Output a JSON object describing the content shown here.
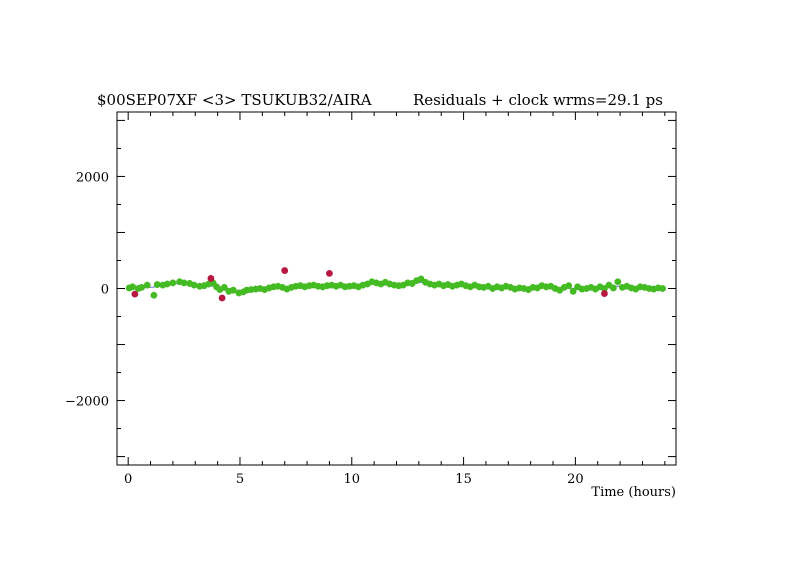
{
  "chart_data": {
    "type": "scatter",
    "title_left": "$00SEP07XF <3> TSUKUB32/AIRA",
    "title_right": "Residuals + clock wrms=29.1  ps",
    "xlabel": "Time (hours)",
    "ylabel": "",
    "xlim": [
      -0.5,
      24.5
    ],
    "ylim": [
      -3150,
      3150
    ],
    "x_ticks": [
      0,
      5,
      10,
      15,
      20
    ],
    "y_ticks": [
      -2000,
      0,
      2000
    ],
    "grid": false,
    "colors": {
      "good": "#44bb22",
      "outlier": "#b8183f",
      "error_bar": "#7e7ed8",
      "clock": "#8888e0",
      "axis": "#000000"
    },
    "series": [
      {
        "role": "used",
        "points": [
          [
            0.05,
            10
          ],
          [
            0.2,
            30
          ],
          [
            0.45,
            0
          ],
          [
            0.6,
            20
          ],
          [
            0.85,
            60
          ],
          [
            1.15,
            -120
          ],
          [
            1.3,
            70
          ],
          [
            1.55,
            60
          ],
          [
            1.75,
            80
          ],
          [
            2.0,
            100
          ],
          [
            2.3,
            120
          ],
          [
            2.5,
            100
          ],
          [
            2.75,
            90
          ],
          [
            2.95,
            60
          ],
          [
            3.2,
            40
          ],
          [
            3.4,
            50
          ],
          [
            3.6,
            80
          ],
          [
            3.8,
            100
          ],
          [
            3.95,
            30
          ],
          [
            4.1,
            -20
          ],
          [
            4.3,
            20
          ],
          [
            4.5,
            -50
          ],
          [
            4.7,
            -30
          ],
          [
            4.95,
            -80
          ],
          [
            5.15,
            -60
          ],
          [
            5.3,
            -30
          ],
          [
            5.5,
            -20
          ],
          [
            5.7,
            -10
          ],
          [
            5.9,
            0
          ],
          [
            6.1,
            -20
          ],
          [
            6.3,
            10
          ],
          [
            6.5,
            30
          ],
          [
            6.7,
            40
          ],
          [
            6.9,
            20
          ],
          [
            7.1,
            -10
          ],
          [
            7.3,
            20
          ],
          [
            7.5,
            40
          ],
          [
            7.7,
            50
          ],
          [
            7.9,
            30
          ],
          [
            8.1,
            50
          ],
          [
            8.3,
            60
          ],
          [
            8.5,
            40
          ],
          [
            8.7,
            30
          ],
          [
            8.9,
            50
          ],
          [
            9.1,
            60
          ],
          [
            9.3,
            40
          ],
          [
            9.5,
            60
          ],
          [
            9.7,
            30
          ],
          [
            9.9,
            40
          ],
          [
            10.1,
            50
          ],
          [
            10.3,
            30
          ],
          [
            10.5,
            60
          ],
          [
            10.7,
            80
          ],
          [
            10.9,
            120
          ],
          [
            11.1,
            100
          ],
          [
            11.3,
            80
          ],
          [
            11.5,
            110
          ],
          [
            11.7,
            80
          ],
          [
            11.9,
            60
          ],
          [
            12.1,
            50
          ],
          [
            12.3,
            60
          ],
          [
            12.5,
            100
          ],
          [
            12.7,
            90
          ],
          [
            12.9,
            140
          ],
          [
            13.1,
            170
          ],
          [
            13.3,
            110
          ],
          [
            13.5,
            80
          ],
          [
            13.7,
            60
          ],
          [
            13.9,
            80
          ],
          [
            14.1,
            50
          ],
          [
            14.3,
            70
          ],
          [
            14.5,
            40
          ],
          [
            14.7,
            60
          ],
          [
            14.9,
            80
          ],
          [
            15.1,
            50
          ],
          [
            15.3,
            30
          ],
          [
            15.5,
            60
          ],
          [
            15.7,
            30
          ],
          [
            15.9,
            20
          ],
          [
            16.1,
            40
          ],
          [
            16.3,
            0
          ],
          [
            16.5,
            30
          ],
          [
            16.7,
            10
          ],
          [
            16.9,
            40
          ],
          [
            17.1,
            20
          ],
          [
            17.3,
            -10
          ],
          [
            17.5,
            10
          ],
          [
            17.7,
            0
          ],
          [
            17.9,
            -20
          ],
          [
            18.1,
            20
          ],
          [
            18.3,
            10
          ],
          [
            18.5,
            50
          ],
          [
            18.7,
            30
          ],
          [
            18.9,
            40
          ],
          [
            19.1,
            0
          ],
          [
            19.3,
            -30
          ],
          [
            19.5,
            20
          ],
          [
            19.7,
            50
          ],
          [
            19.9,
            -50
          ],
          [
            20.1,
            30
          ],
          [
            20.3,
            -10
          ],
          [
            20.5,
            0
          ],
          [
            20.7,
            20
          ],
          [
            20.9,
            -10
          ],
          [
            21.1,
            30
          ],
          [
            21.3,
            0
          ],
          [
            21.5,
            60
          ],
          [
            21.7,
            10
          ],
          [
            21.9,
            120
          ],
          [
            22.1,
            20
          ],
          [
            22.3,
            40
          ],
          [
            22.5,
            10
          ],
          [
            22.7,
            -10
          ],
          [
            22.9,
            30
          ],
          [
            23.1,
            20
          ],
          [
            23.3,
            0
          ],
          [
            23.5,
            -10
          ],
          [
            23.7,
            10
          ],
          [
            23.9,
            0
          ]
        ]
      },
      {
        "role": "rejected",
        "points": [
          [
            0.3,
            -100
          ],
          [
            3.7,
            180
          ],
          [
            4.2,
            -170
          ],
          [
            7.0,
            320
          ],
          [
            9.0,
            270
          ],
          [
            21.3,
            -90
          ]
        ]
      }
    ]
  }
}
